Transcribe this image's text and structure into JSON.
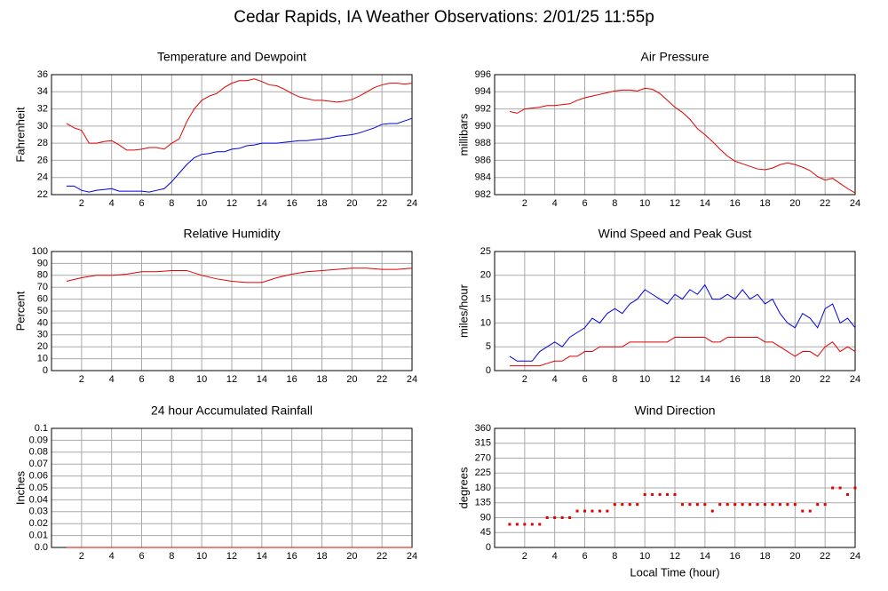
{
  "title": "Cedar Rapids, IA Weather Observations: 2/01/25 11:55p",
  "chart_data": [
    {
      "type": "line",
      "title": "Temperature and Dewpoint",
      "ylabel": "Fahrenheit",
      "x": [
        1,
        1.5,
        2,
        2.5,
        3,
        3.5,
        4,
        4.5,
        5,
        5.5,
        6,
        6.5,
        7,
        7.5,
        8,
        8.5,
        9,
        9.5,
        10,
        10.5,
        11,
        11.5,
        12,
        12.5,
        13,
        13.5,
        14,
        14.5,
        15,
        15.5,
        16,
        16.5,
        17,
        17.5,
        18,
        18.5,
        19,
        19.5,
        20,
        20.5,
        21,
        21.5,
        22,
        22.5,
        23,
        23.5,
        24
      ],
      "series": [
        {
          "color": "#e00000",
          "values": [
            30.3,
            29.8,
            29.5,
            28,
            28,
            28.2,
            28.3,
            27.8,
            27.2,
            27.2,
            27.3,
            27.5,
            27.5,
            27.3,
            28,
            28.5,
            30.5,
            32,
            33,
            33.5,
            33.8,
            34.5,
            35,
            35.3,
            35.3,
            35.5,
            35.2,
            34.8,
            34.7,
            34.3,
            33.8,
            33.4,
            33.2,
            33,
            33,
            32.9,
            32.8,
            32.9,
            33.1,
            33.5,
            34,
            34.5,
            34.8,
            35,
            35,
            34.9,
            35
          ]
        },
        {
          "color": "#0000e0",
          "values": [
            23,
            23,
            22.5,
            22.3,
            22.5,
            22.6,
            22.7,
            22.4,
            22.4,
            22.4,
            22.4,
            22.3,
            22.5,
            22.7,
            23.5,
            24.5,
            25.5,
            26.3,
            26.7,
            26.8,
            27,
            27,
            27.3,
            27.4,
            27.7,
            27.8,
            28,
            28,
            28,
            28.1,
            28.2,
            28.3,
            28.3,
            28.4,
            28.5,
            28.6,
            28.8,
            28.9,
            29,
            29.2,
            29.5,
            29.8,
            30.2,
            30.3,
            30.3,
            30.6,
            30.9
          ]
        }
      ],
      "xlim": [
        0,
        24
      ],
      "xticks": [
        2,
        4,
        6,
        8,
        10,
        12,
        14,
        16,
        18,
        20,
        22,
        24
      ],
      "ylim": [
        22,
        36
      ],
      "yticks": [
        22,
        24,
        26,
        28,
        30,
        32,
        34,
        36
      ],
      "grid": true
    },
    {
      "type": "line",
      "title": "Air Pressure",
      "ylabel": "millibars",
      "x": [
        1,
        1.5,
        2,
        2.5,
        3,
        3.5,
        4,
        4.5,
        5,
        5.5,
        6,
        6.5,
        7,
        7.5,
        8,
        8.5,
        9,
        9.5,
        10,
        10.5,
        11,
        11.5,
        12,
        12.5,
        13,
        13.5,
        14,
        14.5,
        15,
        15.5,
        16,
        16.5,
        17,
        17.5,
        18,
        18.5,
        19,
        19.5,
        20,
        20.5,
        21,
        21.5,
        22,
        22.5,
        23,
        23.5,
        24
      ],
      "series": [
        {
          "color": "#e00000",
          "values": [
            991.7,
            991.5,
            992,
            992.1,
            992.2,
            992.4,
            992.4,
            992.5,
            992.6,
            993,
            993.3,
            993.5,
            993.7,
            993.9,
            994.1,
            994.2,
            994.2,
            994.1,
            994.4,
            994.3,
            993.8,
            993,
            992.2,
            991.6,
            990.8,
            989.7,
            989,
            988.2,
            987.3,
            986.5,
            985.9,
            985.6,
            985.3,
            985,
            984.9,
            985.1,
            985.5,
            985.7,
            985.5,
            985.2,
            984.8,
            984.1,
            983.7,
            983.9,
            983.3,
            982.7,
            982.2
          ]
        }
      ],
      "xlim": [
        0,
        24
      ],
      "xticks": [
        2,
        4,
        6,
        8,
        10,
        12,
        14,
        16,
        18,
        20,
        22,
        24
      ],
      "ylim": [
        982,
        996
      ],
      "yticks": [
        982,
        984,
        986,
        988,
        990,
        992,
        994,
        996
      ],
      "grid": true
    },
    {
      "type": "line",
      "title": "Relative Humidity",
      "ylabel": "Percent",
      "x": [
        1,
        2,
        3,
        4,
        5,
        6,
        7,
        8,
        9,
        10,
        11,
        12,
        13,
        14,
        15,
        16,
        17,
        18,
        19,
        20,
        21,
        22,
        23,
        24
      ],
      "series": [
        {
          "color": "#e00000",
          "values": [
            75,
            78,
            80,
            80,
            81,
            83,
            83,
            84,
            84,
            80,
            77,
            75,
            74,
            74,
            78,
            81,
            83,
            84,
            85,
            86,
            86,
            85,
            85,
            86
          ]
        }
      ],
      "xlim": [
        0,
        24
      ],
      "xticks": [
        2,
        4,
        6,
        8,
        10,
        12,
        14,
        16,
        18,
        20,
        22,
        24
      ],
      "ylim": [
        0,
        100
      ],
      "yticks": [
        0,
        10,
        20,
        30,
        40,
        50,
        60,
        70,
        80,
        90,
        100
      ],
      "grid": true
    },
    {
      "type": "line",
      "title": "Wind Speed and Peak Gust",
      "ylabel": "miles/hour",
      "x": [
        1,
        1.5,
        2,
        2.5,
        3,
        3.5,
        4,
        4.5,
        5,
        5.5,
        6,
        6.5,
        7,
        7.5,
        8,
        8.5,
        9,
        9.5,
        10,
        10.5,
        11,
        11.5,
        12,
        12.5,
        13,
        13.5,
        14,
        14.5,
        15,
        15.5,
        16,
        16.5,
        17,
        17.5,
        18,
        18.5,
        19,
        19.5,
        20,
        20.5,
        21,
        21.5,
        22,
        22.5,
        23,
        23.5,
        24
      ],
      "series": [
        {
          "color": "#0000e0",
          "values": [
            3,
            2,
            2,
            2,
            4,
            5,
            6,
            5,
            7,
            8,
            9,
            11,
            10,
            12,
            13,
            12,
            14,
            15,
            17,
            16,
            15,
            14,
            16,
            15,
            17,
            16,
            18,
            15,
            15,
            16,
            15,
            17,
            15,
            16,
            14,
            15,
            12,
            10,
            9,
            12,
            11,
            9,
            13,
            14,
            10,
            11,
            9
          ]
        },
        {
          "color": "#e00000",
          "values": [
            1,
            1,
            1,
            1,
            1,
            1.5,
            2,
            2,
            3,
            3,
            4,
            4,
            5,
            5,
            5,
            5,
            6,
            6,
            6,
            6,
            6,
            6,
            7,
            7,
            7,
            7,
            7,
            6,
            6,
            7,
            7,
            7,
            7,
            7,
            6,
            6,
            5,
            4,
            3,
            4,
            4,
            3,
            5,
            6,
            4,
            5,
            4
          ]
        }
      ],
      "xlim": [
        0,
        24
      ],
      "xticks": [
        2,
        4,
        6,
        8,
        10,
        12,
        14,
        16,
        18,
        20,
        22,
        24
      ],
      "ylim": [
        0,
        25
      ],
      "yticks": [
        0,
        5,
        10,
        15,
        20,
        25
      ],
      "grid": true
    },
    {
      "type": "line",
      "title": "24 hour Accumulated Rainfall",
      "ylabel": "Inches",
      "x": [
        1,
        24
      ],
      "series": [
        {
          "color": "#e00000",
          "values": [
            0,
            0
          ]
        }
      ],
      "xlim": [
        0,
        24
      ],
      "xticks": [
        2,
        4,
        6,
        8,
        10,
        12,
        14,
        16,
        18,
        20,
        22,
        24
      ],
      "ylim": [
        0,
        0.1
      ],
      "yticks": [
        {
          "value": 0,
          "label": "0.0"
        },
        0.01,
        0.02,
        0.03,
        0.04,
        0.05,
        0.06,
        0.07,
        0.08,
        0.09,
        0.1
      ],
      "grid": true
    },
    {
      "type": "scatter",
      "title": "Wind Direction",
      "ylabel": "degrees",
      "xlabel": "Local Time (hour)",
      "x": [
        1,
        1.5,
        2,
        2.5,
        3,
        3.5,
        4,
        4.5,
        5,
        5.5,
        6,
        6.5,
        7,
        7.5,
        8,
        8.5,
        9,
        9.5,
        10,
        10.5,
        11,
        11.5,
        12,
        12.5,
        13,
        13.5,
        14,
        14.5,
        15,
        15.5,
        16,
        16.5,
        17,
        17.5,
        18,
        18.5,
        19,
        19.5,
        20,
        20.5,
        21,
        21.5,
        22,
        22.5,
        23,
        23.5,
        24
      ],
      "series": [
        {
          "color": "#e00000",
          "values": [
            70,
            70,
            70,
            70,
            70,
            90,
            90,
            90,
            90,
            110,
            110,
            110,
            110,
            110,
            130,
            130,
            130,
            130,
            160,
            160,
            160,
            160,
            160,
            130,
            130,
            130,
            130,
            110,
            130,
            130,
            130,
            130,
            130,
            130,
            130,
            130,
            130,
            130,
            130,
            110,
            110,
            130,
            130,
            180,
            180,
            160,
            180
          ]
        }
      ],
      "xlim": [
        0,
        24
      ],
      "xticks": [
        2,
        4,
        6,
        8,
        10,
        12,
        14,
        16,
        18,
        20,
        22,
        24
      ],
      "ylim": [
        0,
        360
      ],
      "yticks": [
        0,
        45,
        90,
        135,
        180,
        225,
        270,
        315,
        360
      ],
      "grid": true
    }
  ]
}
